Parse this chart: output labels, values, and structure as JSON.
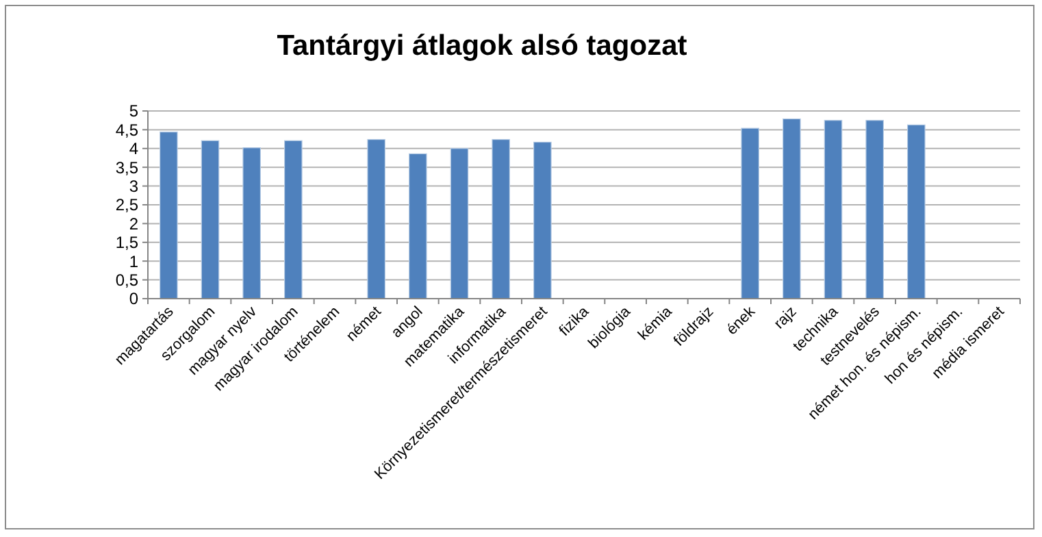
{
  "chart_data": {
    "type": "bar",
    "title": "Tantárgyi átlagok alsó tagozat",
    "categories": [
      "magatartás",
      "szorgalom",
      "magyar nyelv",
      "magyar irodalom",
      "történelem",
      "német",
      "angol",
      "matematika",
      "informatika",
      "Környezetismeret/természetismeret",
      "fizika",
      "biológia",
      "kémia",
      "földrajz",
      "ének",
      "rajz",
      "technika",
      "testnevelés",
      "német hon. és népism.",
      "hon és népism.",
      "média ismeret"
    ],
    "values": [
      4.44,
      4.21,
      4.02,
      4.21,
      null,
      4.24,
      3.86,
      4.0,
      4.24,
      4.17,
      null,
      null,
      null,
      null,
      4.54,
      4.79,
      4.75,
      4.75,
      4.63,
      null,
      null
    ],
    "color": "#4f81bd",
    "ylim": [
      0,
      5
    ],
    "yticks": [
      0,
      {
        "value": 0.5,
        "label": "0,5"
      },
      1,
      {
        "value": 1.5,
        "label": "1,5"
      },
      2,
      {
        "value": 2.5,
        "label": "2,5"
      },
      3,
      {
        "value": 3.5,
        "label": "3,5"
      },
      4,
      {
        "value": 4.5,
        "label": "4,5"
      },
      5
    ],
    "grid": "y"
  }
}
